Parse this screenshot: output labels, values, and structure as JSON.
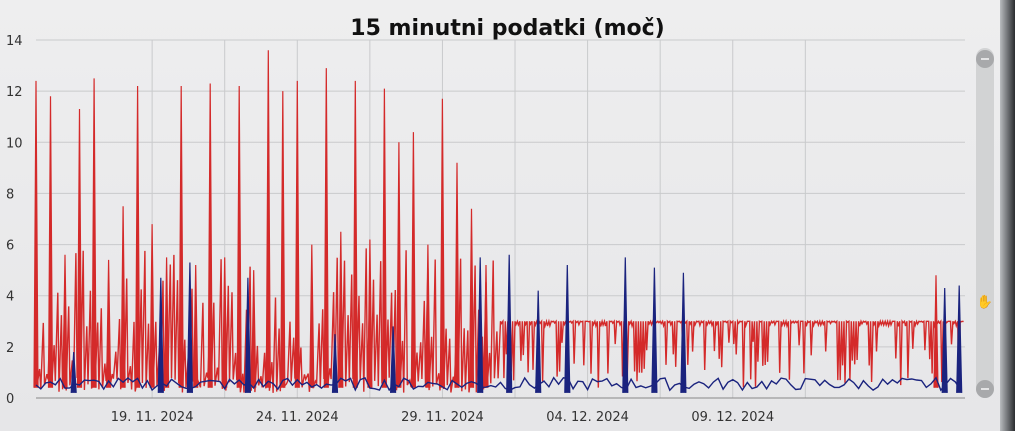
{
  "chart_data": {
    "type": "line",
    "title": "15 minutni podatki (moč)",
    "xlabel": "",
    "ylabel": "",
    "ylim": [
      0,
      14
    ],
    "y_ticks": [
      0,
      2,
      4,
      6,
      8,
      10,
      12,
      14
    ],
    "x_range": [
      "2024-11-15",
      "2024-12-17"
    ],
    "x_tick_labels": [
      {
        "date": "2024-11-19",
        "label": "19. 11. 2024"
      },
      {
        "date": "2024-11-24",
        "label": "24. 11. 2024"
      },
      {
        "date": "2024-11-29",
        "label": "29. 11. 2024"
      },
      {
        "date": "2024-12-04",
        "label": "04. 12. 2024"
      },
      {
        "date": "2024-12-09",
        "label": "09. 12. 2024"
      }
    ],
    "grid": true,
    "legend": "none",
    "series": [
      {
        "color": "#d42a2a",
        "peaks": [
          [
            "2024-11-15",
            12.4
          ],
          [
            "2024-11-15",
            11.8
          ],
          [
            "2024-11-16",
            5.6
          ],
          [
            "2024-11-16",
            11.3
          ],
          [
            "2024-11-17",
            12.5
          ],
          [
            "2024-11-17",
            5.4
          ],
          [
            "2024-11-18",
            7.5
          ],
          [
            "2024-11-18",
            12.2
          ],
          [
            "2024-11-19",
            6.8
          ],
          [
            "2024-11-19",
            5.5
          ],
          [
            "2024-11-20",
            12.2
          ],
          [
            "2024-11-20",
            5.2
          ],
          [
            "2024-11-21",
            12.3
          ],
          [
            "2024-11-21",
            5.5
          ],
          [
            "2024-11-22",
            12.2
          ],
          [
            "2024-11-22",
            5.0
          ],
          [
            "2024-11-23",
            13.6
          ],
          [
            "2024-11-23",
            12.0
          ],
          [
            "2024-11-24",
            12.4
          ],
          [
            "2024-11-24",
            6.0
          ],
          [
            "2024-11-25",
            12.9
          ],
          [
            "2024-11-25",
            6.5
          ],
          [
            "2024-11-26",
            12.4
          ],
          [
            "2024-11-26",
            6.2
          ],
          [
            "2024-11-27",
            12.1
          ],
          [
            "2024-11-27",
            10.0
          ],
          [
            "2024-11-28",
            10.4
          ],
          [
            "2024-11-28",
            6.0
          ],
          [
            "2024-11-29",
            11.7
          ],
          [
            "2024-11-29",
            9.2
          ],
          [
            "2024-11-30",
            7.4
          ],
          [
            "2024-11-30",
            5.2
          ],
          [
            "2024-12-16",
            4.8
          ]
        ],
        "base_level": 3.0
      },
      {
        "color": "#1a237e",
        "peaks": [
          [
            "2024-11-16",
            1.8
          ],
          [
            "2024-11-19",
            4.7
          ],
          [
            "2024-11-20",
            5.3
          ],
          [
            "2024-11-22",
            4.7
          ],
          [
            "2024-11-25",
            2.5
          ],
          [
            "2024-11-27",
            2.8
          ],
          [
            "2024-11-30",
            5.5
          ],
          [
            "2024-12-01",
            5.6
          ],
          [
            "2024-12-02",
            4.2
          ],
          [
            "2024-12-03",
            5.2
          ],
          [
            "2024-12-05",
            5.5
          ],
          [
            "2024-12-06",
            5.1
          ],
          [
            "2024-12-07",
            4.9
          ],
          [
            "2024-12-16",
            4.3
          ],
          [
            "2024-12-16",
            4.4
          ]
        ],
        "base_level": 0.3
      }
    ]
  }
}
